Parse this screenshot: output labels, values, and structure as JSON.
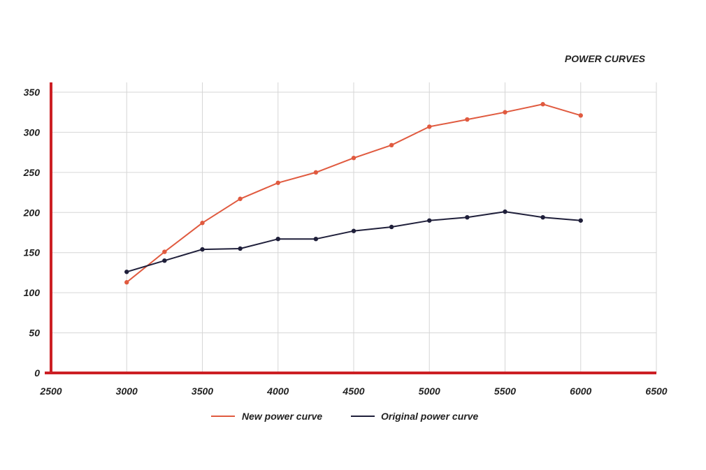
{
  "chart_data": {
    "type": "line",
    "title": "POWER CURVES",
    "xlabel": "",
    "ylabel": "",
    "xlim": [
      2500,
      6500
    ],
    "ylim": [
      0,
      350
    ],
    "x_ticks": [
      2500,
      3000,
      3500,
      4000,
      4500,
      5000,
      5500,
      6000,
      6500
    ],
    "y_ticks": [
      0,
      50,
      100,
      150,
      200,
      250,
      300,
      350
    ],
    "grid": true,
    "legend": "bottom-center",
    "series": [
      {
        "name": "New power curve",
        "color": "#e05a3f",
        "x": [
          3000,
          3250,
          3500,
          3750,
          4000,
          4250,
          4500,
          4750,
          5000,
          5250,
          5500,
          5750,
          6000
        ],
        "y": [
          113,
          151,
          187,
          217,
          237,
          250,
          268,
          284,
          307,
          316,
          325,
          335,
          321
        ]
      },
      {
        "name": "Original power curve",
        "color": "#1f1f3a",
        "x": [
          3000,
          3250,
          3500,
          3750,
          4000,
          4250,
          4500,
          4750,
          5000,
          5250,
          5500,
          5750,
          6000
        ],
        "y": [
          126,
          140,
          154,
          155,
          167,
          167,
          177,
          182,
          190,
          194,
          201,
          194,
          190
        ]
      }
    ]
  }
}
